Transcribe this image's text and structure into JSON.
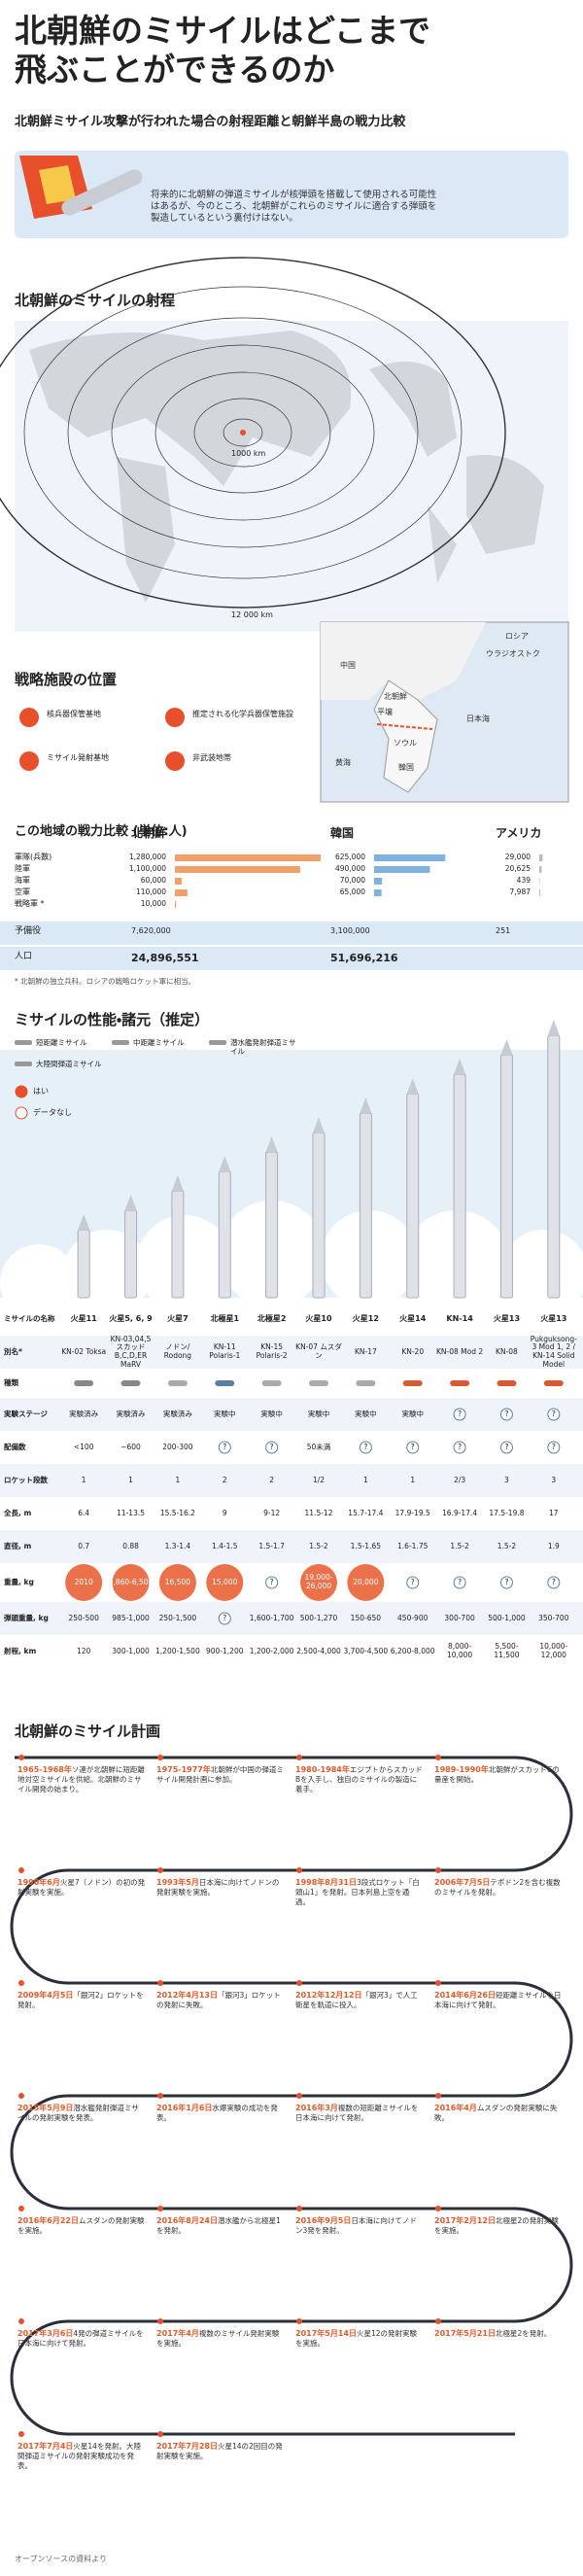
{
  "header": {
    "title_lines": [
      "北朝鮮のミサイルはどこまで",
      "飛ぶことができるのか"
    ],
    "subtitle": "北朝鮮ミサイル攻撃が行われた場合の射程距離と朝鮮半島の戦力比較",
    "intro": "将来的に北朝鮮の弾道ミサイルが核弾頭を搭載して使用される可能性はあるが、今のところ、北朝鮮がこれらのミサイルに適合する弾頭を製造しているという裏付けはない。"
  },
  "range_map": {
    "title": "北朝鮮のミサイルの射程",
    "range_labels": [
      "1000 km",
      "12 000 km"
    ]
  },
  "facilities": {
    "title": "戦略施設の位置",
    "legend": [
      "核兵器保管基地",
      "推定される化学兵器保管施設",
      "ミサイル発射基地",
      "非武装地帯"
    ]
  },
  "inset_map": {
    "labels": [
      "ロシア",
      "ウラジオストク",
      "中国",
      "北朝鮮",
      "平壌",
      "日本海",
      "ソウル",
      "韓国",
      "黄海"
    ]
  },
  "forces": {
    "title": "この地域の戦力比較 (単位:人)",
    "columns": [
      "北朝鮮",
      "韓国",
      "アメリカ"
    ],
    "colors": [
      "#f0a06a",
      "#7fb2de",
      "#bbbbbb"
    ],
    "rows": [
      {
        "label": "軍隊(兵数)",
        "values": [
          1280000,
          625000,
          29000
        ],
        "value_labels": [
          "1,280,000",
          "625,000",
          "29,000"
        ]
      },
      {
        "label": "陸軍",
        "values": [
          1100000,
          490000,
          20625
        ],
        "value_labels": [
          "1,100,000",
          "490,000",
          "20,625"
        ]
      },
      {
        "label": "海軍",
        "values": [
          60000,
          70000,
          439
        ],
        "value_labels": [
          "60,000",
          "70,000",
          "439"
        ]
      },
      {
        "label": "空軍",
        "values": [
          110000,
          65000,
          7987
        ],
        "value_labels": [
          "110,000",
          "65,000",
          "7,987"
        ]
      },
      {
        "label": "戦略軍 *",
        "values": [
          10000,
          null,
          null
        ],
        "value_labels": [
          "10,000",
          null,
          null
        ]
      }
    ],
    "totals": [
      {
        "label": "予備役",
        "values": [
          "7,620,000",
          "3,100,000",
          "251"
        ]
      },
      {
        "label": "人口",
        "values": [
          "24,896,551",
          "51,696,216",
          null
        ]
      }
    ],
    "footnote": "* 北朝鮮の独立兵科。ロシアの戦略ロケット軍に相当。"
  },
  "missiles": {
    "title": "ミサイルの性能・諸元（推定）",
    "class_legend": [
      "短距離ミサイル",
      "中距離ミサイル",
      "潜水艦発射弾道ミサイル",
      "大陸間弾道ミサイル"
    ],
    "status_legend": [
      "はい",
      "データなし"
    ],
    "row_labels": [
      "ミサイルの名称",
      "別名*",
      "種類",
      "実験ステージ",
      "配備数",
      "ロケット段数",
      "全長, m",
      "直径, m",
      "重量, kg",
      "弾頭重量, kg",
      "射程, km"
    ],
    "columns": [
      {
        "name": "火星11",
        "alias": "KN-02 Toksa",
        "class": 0,
        "stage": "実験済み",
        "deployed": "<100",
        "stages": "1",
        "length": "6.4",
        "diameter": "0.7",
        "weight": "2010",
        "warhead": "250-500",
        "range": "120"
      },
      {
        "name": "火星5, 6, 9",
        "alias": "KN-03,04,5 スカッドB,C,D,ER MaRV",
        "class": 0,
        "stage": "実験済み",
        "deployed": "~600",
        "stages": "1",
        "length": "11-13.5",
        "diameter": "0.88",
        "weight": "5,860-6,500",
        "warhead": "985-1,000",
        "range": "300-1,000"
      },
      {
        "name": "火星7",
        "alias": "ノドン/ Rodong",
        "class": 1,
        "stage": "実験済み",
        "deployed": "200-300",
        "stages": "1",
        "length": "15.5-16.2",
        "diameter": "1.3-1.4",
        "weight": "16,500",
        "warhead": "250-1,500",
        "range": "1,200-1,500"
      },
      {
        "name": "北極星1",
        "alias": "KN-11 Polaris-1",
        "class": 2,
        "stage": "実験中",
        "deployed": "?",
        "stages": "2",
        "length": "9",
        "diameter": "1.4-1.5",
        "weight": "15,000",
        "warhead": "?",
        "range": "900-1,200"
      },
      {
        "name": "北極星2",
        "alias": "KN-15 Polaris-2",
        "class": 1,
        "stage": "実験中",
        "deployed": "?",
        "stages": "2",
        "length": "9-12",
        "diameter": "1.5-1.7",
        "weight": "?",
        "warhead": "1,600-1,700",
        "range": "1,200-2,000"
      },
      {
        "name": "火星10",
        "alias": "KN-07 ムスダン",
        "class": 1,
        "stage": "実験中",
        "deployed": "50未満",
        "stages": "1/2",
        "length": "11.5-12",
        "diameter": "1.5-2",
        "weight": "19,000-26,000",
        "warhead": "500-1,270",
        "range": "2,500-4,000"
      },
      {
        "name": "火星12",
        "alias": "KN-17",
        "class": 1,
        "stage": "実験中",
        "deployed": "?",
        "stages": "1",
        "length": "15.7-17.4",
        "diameter": "1.5-1.65",
        "weight": "20,000",
        "warhead": "150-650",
        "range": "3,700-4,500"
      },
      {
        "name": "火星14",
        "alias": "KN-20",
        "class": 3,
        "stage": "実験中",
        "deployed": "?",
        "stages": "1",
        "length": "17.9-19.5",
        "diameter": "1.6-1.75",
        "weight": "?",
        "warhead": "450-900",
        "range": "6,200-8,000"
      },
      {
        "name": "KN-14",
        "alias": "KN-08 Mod 2",
        "class": 3,
        "stage": "?",
        "deployed": "?",
        "stages": "2/3",
        "length": "16.9-17.4",
        "diameter": "1.5-2",
        "weight": "?",
        "warhead": "300-700",
        "range": "8,000-10,000"
      },
      {
        "name": "火星13",
        "alias": "KN-08",
        "class": 3,
        "stage": "?",
        "deployed": "?",
        "stages": "3",
        "length": "17.5-19.8",
        "diameter": "1.5-2",
        "weight": "?",
        "warhead": "500-1,000",
        "range": "5,500-11,500"
      },
      {
        "name": "火星13",
        "alias": "Pukguksong-3 Mod 1, 2 / KN-14 Solid Model",
        "class": 3,
        "stage": "?",
        "deployed": "?",
        "stages": "3",
        "length": "17",
        "diameter": "1.9",
        "weight": "?",
        "warhead": "350-700",
        "range": "10,000-12,000"
      }
    ]
  },
  "timeline": {
    "title": "北朝鮮のミサイル計画",
    "events": [
      {
        "date": "1965-1968年",
        "text": "ソ連が北朝鮮に短距離地対空ミサイルを供給。北朝鮮のミサイル開発の始まり。"
      },
      {
        "date": "1975-1977年",
        "text": "北朝鮮が中国の弾道ミサイル開発計画に参加。"
      },
      {
        "date": "1980-1984年",
        "text": "エジプトからスカッドBを入手し、独自のミサイルの製造に着手。"
      },
      {
        "date": "1989-1990年",
        "text": "北朝鮮がスカッドCの量産を開始。"
      },
      {
        "date": "1990年6月",
        "text": "火星7（ノドン）の初の発射実験を実施。"
      },
      {
        "date": "1993年5月",
        "text": "日本海に向けてノドンの発射実験を実施。"
      },
      {
        "date": "1998年8月31日",
        "text": "3段式ロケット「白頭山1」を発射。日本列島上空を通過。"
      },
      {
        "date": "2006年7月5日",
        "text": "テポドン2を含む複数のミサイルを発射。"
      },
      {
        "date": "2009年4月5日",
        "text": "「銀河2」ロケットを発射。"
      },
      {
        "date": "2012年4月13日",
        "text": "「銀河3」ロケットの発射に失敗。"
      },
      {
        "date": "2012年12月12日",
        "text": "「銀河3」で人工衛星を軌道に投入。"
      },
      {
        "date": "2014年6月26日",
        "text": "短距離ミサイルを日本海に向けて発射。"
      },
      {
        "date": "2015年5月9日",
        "text": "潜水艦発射弾道ミサイルの発射実験を発表。"
      },
      {
        "date": "2016年1月6日",
        "text": "水爆実験の成功を発表。"
      },
      {
        "date": "2016年3月",
        "text": "複数の短距離ミサイルを日本海に向けて発射。"
      },
      {
        "date": "2016年4月",
        "text": "ムスダンの発射実験に失敗。"
      },
      {
        "date": "2016年6月22日",
        "text": "ムスダンの発射実験を実施。"
      },
      {
        "date": "2016年8月24日",
        "text": "潜水艦から北極星1を発射。"
      },
      {
        "date": "2016年9月5日",
        "text": "日本海に向けてノドン3発を発射。"
      },
      {
        "date": "2017年2月12日",
        "text": "北極星2の発射実験を実施。"
      },
      {
        "date": "2017年3月6日",
        "text": "4発の弾道ミサイルを日本海に向けて発射。"
      },
      {
        "date": "2017年4月",
        "text": "複数のミサイル発射実験を実施。"
      },
      {
        "date": "2017年5月14日",
        "text": "火星12の発射実験を実施。"
      },
      {
        "date": "2017年5月21日",
        "text": "北極星2を発射。"
      },
      {
        "date": "2017年7月4日",
        "text": "火星14を発射。大陸間弾道ミサイルの発射実験成功を発表。"
      },
      {
        "date": "2017年7月28日",
        "text": "火星14の2回目の発射実験を実施。"
      }
    ]
  },
  "footer": {
    "source": "オープンソースの資料より"
  }
}
